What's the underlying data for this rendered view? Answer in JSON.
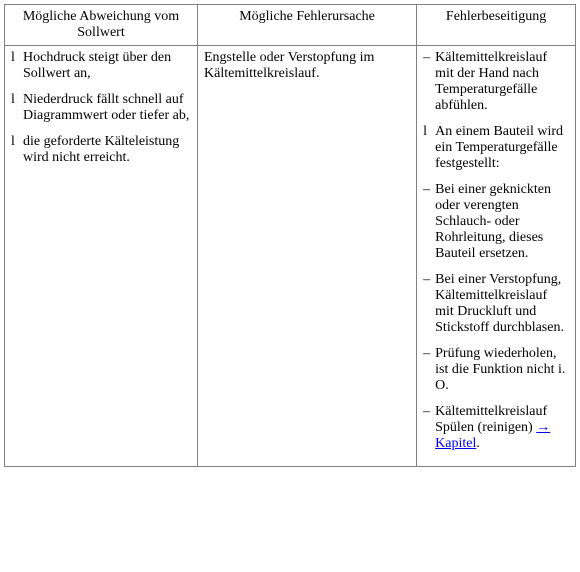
{
  "headers": {
    "col1": "Mögliche Abweichung vom Sollwert",
    "col2": "Mögliche Fehlerursache",
    "col3": "Fehlerbeseitigung"
  },
  "col1_items": [
    {
      "bullet": "l",
      "text": "Hochdruck steigt über den Sollwert an,"
    },
    {
      "bullet": "l",
      "text": "Niederdruck fällt schnell auf Diagrammwert oder tiefer ab,"
    },
    {
      "bullet": "l",
      "text": "die geforderte Kälteleistung wird nicht erreicht."
    }
  ],
  "col2_text": "Engstelle oder Verstopfung im Kältemittelkreislauf.",
  "col3_items": [
    {
      "bullet": "–",
      "text": "Kältemittelkreislauf mit der Hand nach Temperaturgefälle abfühlen."
    },
    {
      "bullet": "l",
      "text": "An einem Bauteil wird ein Temperaturgefälle festgestellt:"
    },
    {
      "bullet": "–",
      "text": "Bei einer geknickten oder verengten Schlauch- oder Rohrleitung, dieses Bauteil ersetzen."
    },
    {
      "bullet": "–",
      "text": "Bei einer Verstopfung, Kältemittelkreislauf mit Druckluft und Stickstoff durchblasen."
    },
    {
      "bullet": "–",
      "text": "Prüfung wiederholen, ist die Funktion nicht i. O."
    },
    {
      "bullet": "–",
      "text": "Kältemittelkreislauf Spülen (reinigen) "
    }
  ],
  "col3_link": "→ Kapitel",
  "col3_link_suffix": "."
}
